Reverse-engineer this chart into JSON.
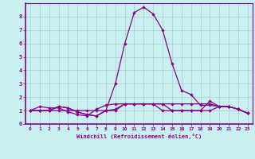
{
  "xlabel": "Windchill (Refroidissement éolien,°C)",
  "bg_color": "#c8f0f0",
  "line_color": "#880088",
  "grid_color": "#aacccc",
  "xlim": [
    -0.5,
    23.5
  ],
  "ylim": [
    0,
    9
  ],
  "xticks": [
    0,
    1,
    2,
    3,
    4,
    5,
    6,
    7,
    8,
    9,
    10,
    11,
    12,
    13,
    14,
    15,
    16,
    17,
    18,
    19,
    20,
    21,
    22,
    23
  ],
  "yticks": [
    0,
    1,
    2,
    3,
    4,
    5,
    6,
    7,
    8
  ],
  "series": [
    [
      1.0,
      1.3,
      1.2,
      1.2,
      0.9,
      0.7,
      0.6,
      1.1,
      1.4,
      1.5,
      1.5,
      1.5,
      1.5,
      1.5,
      1.5,
      1.5,
      1.5,
      1.5,
      1.5,
      1.5,
      1.3,
      1.3,
      1.1,
      0.8
    ],
    [
      1.0,
      1.0,
      1.0,
      1.3,
      1.2,
      0.9,
      0.7,
      0.6,
      1.0,
      3.0,
      6.0,
      8.3,
      8.7,
      8.2,
      7.0,
      4.5,
      2.5,
      2.2,
      1.4,
      1.4,
      1.3,
      1.3,
      1.1,
      0.8
    ],
    [
      1.0,
      1.0,
      1.0,
      1.0,
      1.0,
      1.0,
      1.0,
      1.0,
      1.0,
      1.0,
      1.5,
      1.5,
      1.5,
      1.5,
      1.0,
      1.0,
      1.0,
      1.0,
      1.0,
      1.0,
      1.3,
      1.3,
      1.1,
      0.8
    ],
    [
      1.0,
      1.0,
      1.0,
      1.3,
      1.2,
      0.9,
      0.7,
      0.6,
      1.0,
      1.1,
      1.5,
      1.5,
      1.5,
      1.5,
      1.5,
      1.0,
      1.0,
      1.0,
      1.0,
      1.7,
      1.3,
      1.3,
      1.1,
      0.8
    ]
  ]
}
